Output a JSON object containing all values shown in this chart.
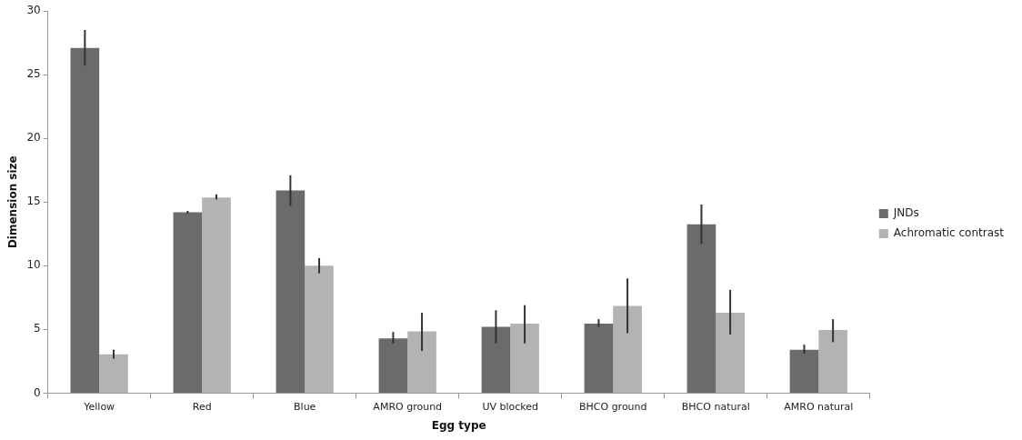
{
  "chart_data": {
    "type": "bar",
    "xlabel": "Egg type",
    "ylabel": "Dimension size",
    "categories": [
      "Yellow",
      "Red",
      "Blue",
      "AMRO ground",
      "UV blocked",
      "BHCO ground",
      "BHCO natural",
      "AMRO natural"
    ],
    "series": [
      {
        "name": "JNDs",
        "color": "#6b6b6b",
        "values": [
          27.1,
          14.2,
          15.9,
          4.3,
          5.2,
          5.45,
          13.25,
          3.4
        ],
        "errors": [
          [
            25.7,
            28.5
          ],
          [
            14.1,
            14.3
          ],
          [
            14.7,
            17.1
          ],
          [
            3.9,
            4.8
          ],
          [
            3.9,
            6.5
          ],
          [
            5.2,
            5.8
          ],
          [
            11.7,
            14.8
          ],
          [
            3.1,
            3.8
          ]
        ]
      },
      {
        "name": "Achromatic contrast",
        "color": "#b3b3b3",
        "values": [
          3.05,
          15.35,
          10.0,
          4.85,
          5.45,
          6.85,
          6.3,
          4.95
        ],
        "errors": [
          [
            2.7,
            3.4
          ],
          [
            15.2,
            15.6
          ],
          [
            9.4,
            10.6
          ],
          [
            3.3,
            6.3
          ],
          [
            3.9,
            6.9
          ],
          [
            4.7,
            9.0
          ],
          [
            4.6,
            8.1
          ],
          [
            4.0,
            5.8
          ]
        ]
      }
    ],
    "ylim": [
      0,
      30
    ],
    "yticks": [
      0,
      5,
      10,
      15,
      20,
      25,
      30
    ],
    "grid": false,
    "legend": "right"
  }
}
